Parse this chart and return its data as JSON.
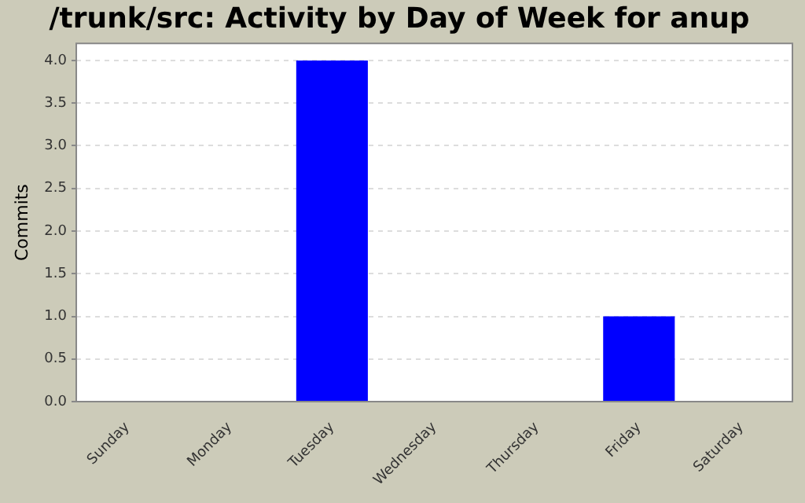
{
  "chart_data": {
    "type": "bar",
    "title": "/trunk/src: Activity by Day of Week for anup",
    "ylabel": "Commits",
    "categories": [
      "Sunday",
      "Monday",
      "Tuesday",
      "Wednesday",
      "Thursday",
      "Friday",
      "Saturday"
    ],
    "values": [
      0,
      0,
      4,
      0,
      0,
      1,
      0
    ],
    "color": "#0000ff",
    "ylim": [
      0,
      4.2
    ],
    "yticks": [
      {
        "value": 0,
        "label": "0.0"
      },
      {
        "value": 0.5,
        "label": "0.5"
      },
      {
        "value": 1,
        "label": "1.0"
      },
      {
        "value": 1.5,
        "label": "1.5"
      },
      {
        "value": 2,
        "label": "2.0"
      },
      {
        "value": 2.5,
        "label": "2.5"
      },
      {
        "value": 3,
        "label": "3.0"
      },
      {
        "value": 3.5,
        "label": "3.5"
      },
      {
        "value": 4,
        "label": "4.0"
      }
    ],
    "grid": "y",
    "legend": false
  }
}
